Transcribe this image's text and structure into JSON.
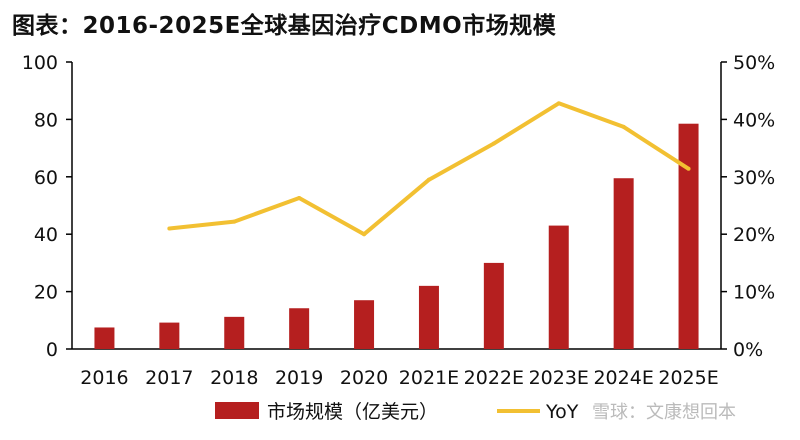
{
  "title": "图表：2016-2025E全球基因治疗CDMO市场规模",
  "chart_data": {
    "type": "bar",
    "categories": [
      "2016",
      "2017",
      "2018",
      "2019",
      "2020",
      "2021E",
      "2022E",
      "2023E",
      "2024E",
      "2025E"
    ],
    "series": [
      {
        "name": "市场规模（亿美元）",
        "type": "bar",
        "axis": "left",
        "color": "#b51f1f",
        "values": [
          7.5,
          9.2,
          11.2,
          14.2,
          17.0,
          22.0,
          30.0,
          43.0,
          59.5,
          78.5
        ]
      },
      {
        "name": "YoY",
        "type": "line",
        "axis": "right",
        "color": "#f2c032",
        "values": [
          null,
          0.21,
          0.222,
          0.263,
          0.2,
          0.295,
          0.358,
          0.428,
          0.387,
          0.314
        ]
      }
    ],
    "y_left": {
      "min": 0,
      "max": 100,
      "ticks": [
        "0",
        "20",
        "40",
        "60",
        "80",
        "100"
      ]
    },
    "y_right": {
      "min": 0,
      "max": 0.5,
      "ticks": [
        "0%",
        "10%",
        "20%",
        "30%",
        "40%",
        "50%"
      ]
    },
    "grid": false,
    "legend_position": "bottom"
  },
  "watermark": "雪球：文康想回本"
}
